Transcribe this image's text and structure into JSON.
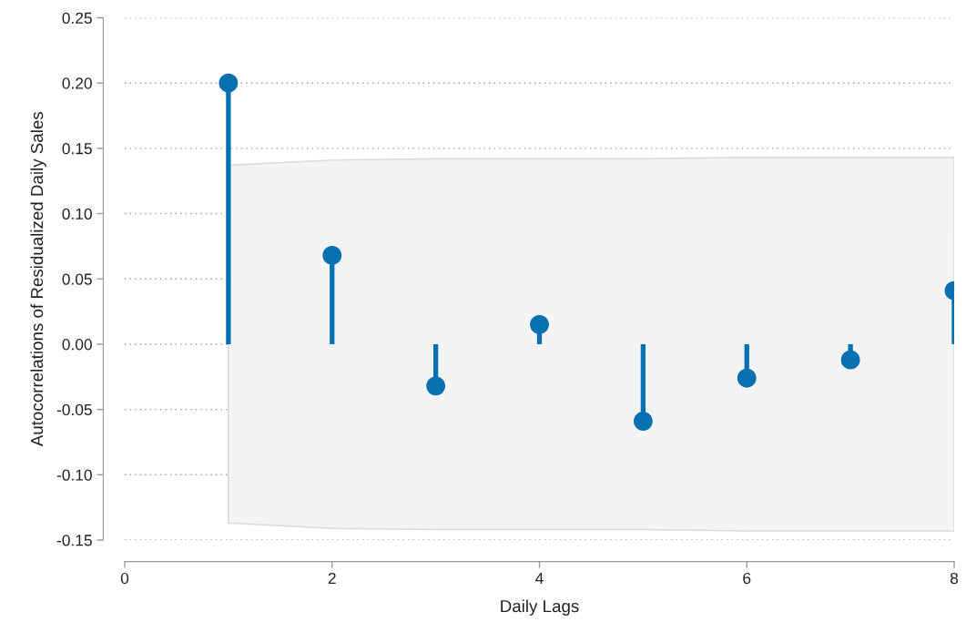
{
  "chart_data": {
    "type": "lollipop",
    "xlabel": "Daily Lags",
    "ylabel": "Autocorrelations of Residualized Daily Sales",
    "x": [
      1,
      2,
      3,
      4,
      5,
      6,
      7,
      8
    ],
    "series": [
      {
        "color": "#0571b0",
        "values": [
          0.2,
          0.068,
          -0.032,
          0.015,
          -0.059,
          -0.026,
          -0.012,
          0.041
        ],
        "lower": [
          -0.137,
          -0.141,
          -0.142,
          -0.142,
          -0.142,
          -0.143,
          -0.143,
          -0.143
        ],
        "upper": [
          0.137,
          0.141,
          0.142,
          0.142,
          0.142,
          0.143,
          0.143,
          0.143
        ]
      }
    ],
    "xlim": [
      0,
      8
    ],
    "xticks": [
      0,
      2,
      4,
      6,
      8
    ],
    "ylim": [
      -0.15,
      0.25
    ],
    "yticks": [
      {
        "value": -0.15,
        "label": "-0.15"
      },
      {
        "value": -0.1,
        "label": "-0.10"
      },
      {
        "value": -0.05,
        "label": "-0.05"
      },
      {
        "value": 0,
        "label": "0.00"
      },
      {
        "value": 0.05,
        "label": "0.05"
      },
      {
        "value": 0.1,
        "label": "0.10"
      },
      {
        "value": 0.15,
        "label": "0.15"
      },
      {
        "value": 0.2,
        "label": "0.20"
      },
      {
        "value": 0.25,
        "label": "0.25"
      }
    ],
    "grid": "y",
    "marker": "circle"
  }
}
